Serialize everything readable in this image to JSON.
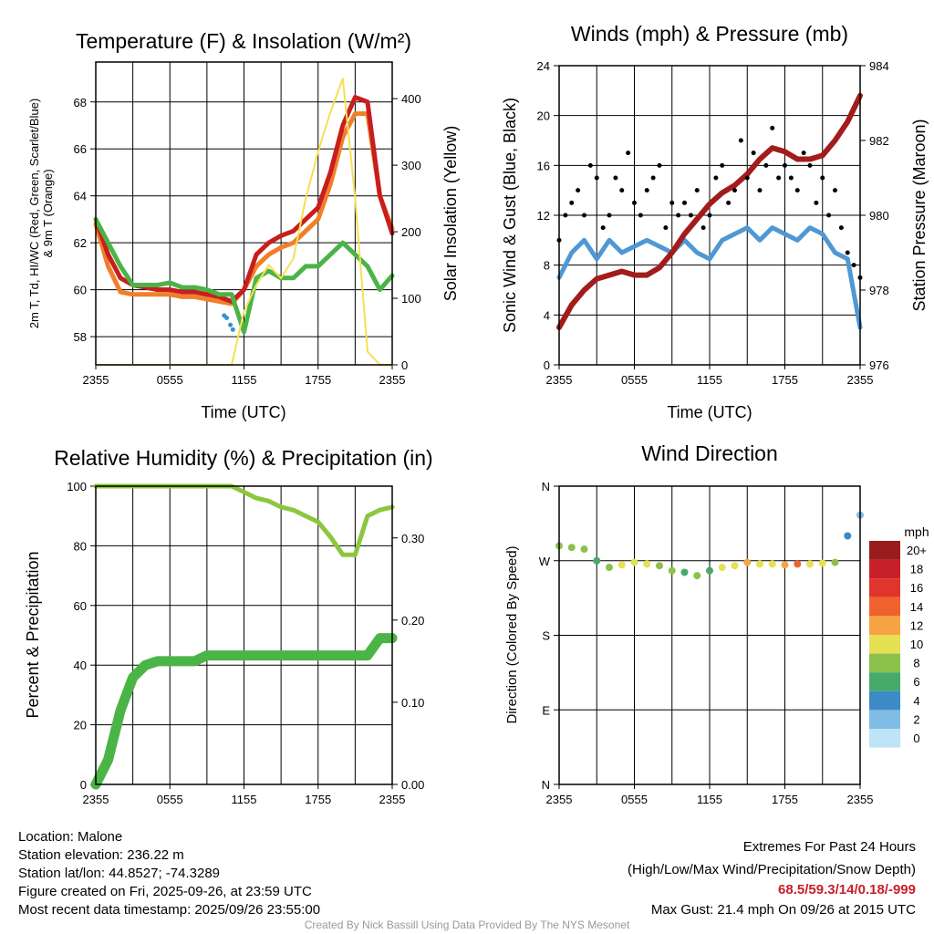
{
  "chart_data": [
    {
      "type": "line",
      "title": "Temperature (F) & Insolation (W/m²)",
      "xlabel": "Time (UTC)",
      "ylabel": [
        "2m T, Td, HI/WC (Red, Green, Scarlet/Blue)",
        "& 9m T (Orange)"
      ],
      "ylabel_right": "Solar Insolation (Yellow)",
      "xticks": [
        "2355",
        "0555",
        "1155",
        "1755",
        "2355"
      ],
      "ylim": [
        56.8,
        69.7
      ],
      "yticks": [
        "58",
        "60",
        "62",
        "64",
        "66",
        "68"
      ],
      "ylim_right": [
        0,
        455
      ],
      "yticks_right": [
        "0",
        "100",
        "200",
        "300",
        "400"
      ],
      "x_hours": [
        0,
        1,
        2,
        3,
        4,
        5,
        6,
        7,
        8,
        9,
        10,
        11,
        12,
        13,
        14,
        15,
        16,
        17,
        18,
        19,
        20,
        21,
        22,
        23,
        24
      ],
      "series": [
        {
          "name": "9m T",
          "color": "#f07f2a",
          "axis": "left",
          "values": [
            62.8,
            61,
            59.9,
            59.8,
            59.8,
            59.8,
            59.8,
            59.7,
            59.7,
            59.6,
            59.5,
            59.4,
            60,
            61,
            61.5,
            61.8,
            62,
            62.5,
            63,
            64.5,
            66.5,
            67.5,
            67.5,
            64,
            62.6
          ]
        },
        {
          "name": "2m T",
          "color": "#c81e1e",
          "axis": "left",
          "values": [
            63,
            61.5,
            60.5,
            60.2,
            60.1,
            60,
            60,
            59.9,
            59.9,
            59.8,
            59.7,
            59.5,
            60,
            61.5,
            62,
            62.3,
            62.5,
            63,
            63.5,
            65,
            67,
            68.2,
            68,
            64,
            62.4
          ]
        },
        {
          "name": "Td",
          "color": "#4bb446",
          "axis": "left",
          "values": [
            63,
            62,
            61,
            60.2,
            60.2,
            60.2,
            60.3,
            60.1,
            60.1,
            60,
            59.8,
            59.8,
            58.2,
            60.5,
            60.8,
            60.5,
            60.5,
            61,
            61,
            61.5,
            62,
            61.5,
            61,
            60,
            60.6
          ]
        },
        {
          "name": "Solar",
          "color": "#f5e050",
          "axis": "right",
          "values": [
            0,
            0,
            0,
            0,
            0,
            0,
            0,
            0,
            0,
            0,
            0,
            0,
            80,
            120,
            150,
            130,
            160,
            250,
            320,
            380,
            430,
            250,
            20,
            0,
            0
          ]
        }
      ],
      "hi_wc_points": {
        "color": "#3a8fd0",
        "x_hours": [
          10.4,
          10.6,
          10.9,
          11.1
        ],
        "values": [
          58.9,
          58.8,
          58.5,
          58.3
        ]
      }
    },
    {
      "type": "line",
      "title": "Winds (mph) & Pressure (mb)",
      "xlabel": "Time (UTC)",
      "ylabel": "Sonic Wind & Gust (Blue, Black)",
      "ylabel_right": "Station Pressure (Maroon)",
      "xticks": [
        "2355",
        "0555",
        "1155",
        "1755",
        "2355"
      ],
      "ylim": [
        0,
        24
      ],
      "yticks": [
        "0",
        "4",
        "8",
        "12",
        "16",
        "20",
        "24"
      ],
      "ylim_right": [
        976,
        984
      ],
      "yticks_right": [
        "976",
        "978",
        "980",
        "982",
        "984"
      ],
      "x_hours": [
        0,
        1,
        2,
        3,
        4,
        5,
        6,
        7,
        8,
        9,
        10,
        11,
        12,
        13,
        14,
        15,
        16,
        17,
        18,
        19,
        20,
        21,
        22,
        23,
        24
      ],
      "series": [
        {
          "name": "Sonic Wind",
          "color": "#4f98d4",
          "axis": "left",
          "values": [
            7,
            9,
            10,
            8.5,
            10,
            9,
            9.5,
            10,
            9.5,
            9,
            10,
            9,
            8.5,
            10,
            10.5,
            11,
            10,
            11,
            10.5,
            10,
            11,
            10.5,
            9,
            8.5,
            3
          ]
        },
        {
          "name": "Pressure",
          "color": "#a31c1c",
          "axis": "right",
          "values": [
            977,
            977.6,
            978,
            978.3,
            978.4,
            978.5,
            978.4,
            978.4,
            978.6,
            979,
            979.5,
            979.9,
            980.3,
            980.6,
            980.8,
            981.1,
            981.5,
            981.8,
            981.7,
            981.5,
            981.5,
            981.6,
            982,
            982.5,
            983.2
          ]
        }
      ],
      "gust_points": {
        "color": "#000000",
        "values": [
          10,
          12,
          13,
          14,
          12,
          16,
          15,
          11,
          12,
          15,
          14,
          17,
          13,
          12,
          14,
          15,
          16,
          11,
          13,
          12,
          13,
          12,
          14,
          11,
          12,
          15,
          16,
          13,
          14,
          18,
          15,
          17,
          14,
          16,
          19,
          15,
          16,
          15,
          14,
          17,
          16,
          13,
          15,
          12,
          14,
          11,
          9,
          8,
          7
        ]
      }
    },
    {
      "type": "line",
      "title": "Relative Humidity (%) & Precipitation (in)",
      "ylabel": "Percent & Precipitation",
      "xticks": [
        "2355",
        "0555",
        "1155",
        "1755",
        "2355"
      ],
      "ylim": [
        0,
        100
      ],
      "yticks": [
        "0",
        "20",
        "40",
        "60",
        "80",
        "100"
      ],
      "ylim_right": [
        0,
        0.363
      ],
      "yticks_right": [
        "0.00",
        "0.10",
        "0.20",
        "0.30"
      ],
      "x_hours": [
        0,
        1,
        2,
        3,
        4,
        5,
        6,
        7,
        8,
        9,
        10,
        11,
        12,
        13,
        14,
        15,
        16,
        17,
        18,
        19,
        20,
        21,
        22,
        23,
        24
      ],
      "series": [
        {
          "name": "RH",
          "color": "#8cc63f",
          "axis": "left",
          "values": [
            100,
            100,
            100,
            100,
            100,
            100,
            100,
            100,
            100,
            100,
            100,
            100,
            98,
            96,
            95,
            93,
            92,
            90,
            88,
            83,
            77,
            77,
            90,
            92,
            93
          ]
        },
        {
          "name": "Precipitation",
          "color": "#4bb446",
          "axis": "right",
          "values": [
            0,
            0.03,
            0.09,
            0.13,
            0.145,
            0.15,
            0.15,
            0.15,
            0.15,
            0.157,
            0.157,
            0.157,
            0.157,
            0.157,
            0.157,
            0.157,
            0.157,
            0.157,
            0.157,
            0.157,
            0.157,
            0.157,
            0.157,
            0.178,
            0.178
          ]
        }
      ]
    },
    {
      "type": "scatter",
      "title": "Wind Direction",
      "ylabel": "Direction (Colored By Speed)",
      "xticks": [
        "2355",
        "0555",
        "1155",
        "1755",
        "2355"
      ],
      "yticks": [
        "N",
        "E",
        "S",
        "W",
        "N"
      ],
      "ylim": [
        0,
        360
      ],
      "x_hours": [
        0,
        1,
        2,
        3,
        4,
        5,
        6,
        7,
        8,
        9,
        10,
        11,
        12,
        13,
        14,
        15,
        16,
        17,
        18,
        19,
        20,
        21,
        22,
        23,
        24
      ],
      "direction": [
        288,
        286,
        284,
        270,
        262,
        265,
        268,
        266,
        264,
        258,
        256,
        252,
        258,
        262,
        264,
        268,
        266,
        266,
        265,
        266,
        266,
        267,
        268,
        300,
        325
      ],
      "speed": [
        8,
        9,
        9,
        7,
        9,
        10,
        10,
        11,
        9,
        8,
        6,
        8,
        7,
        10,
        11,
        12,
        11,
        10,
        12,
        14,
        10,
        10,
        8,
        4,
        3
      ],
      "colorbar": {
        "title": "mph",
        "labels": [
          "20+",
          "18",
          "16",
          "14",
          "12",
          "10",
          "8",
          "6",
          "4",
          "2",
          "0"
        ],
        "colors": [
          "#9b1c1c",
          "#c8202a",
          "#e0352b",
          "#f0622d",
          "#f6a443",
          "#e6e053",
          "#8cc14b",
          "#47a96a",
          "#3e8ac6",
          "#7fbce6",
          "#bfe3f7"
        ]
      }
    }
  ],
  "footer": {
    "location": "Location: Malone",
    "elevation": "Station elevation: 236.22 m",
    "latlon": "Station lat/lon: 44.8527; -74.3289",
    "created": "Figure created on Fri, 2025-09-26, at 23:59 UTC",
    "recent": "Most recent data timestamp: 2025/09/26 23:55:00",
    "extremes_title": "Extremes For Past 24 Hours",
    "extremes_sub": "(High/Low/Max Wind/Precipitation/Snow Depth)",
    "extremes_values": "68.5/59.3/14/0.18/-999",
    "max_gust": "Max Gust: 21.4 mph On 09/26 at 2015 UTC",
    "credit": "Created By Nick Bassill Using Data Provided By The NYS Mesonet",
    "extremes_color": "#c8202a"
  }
}
